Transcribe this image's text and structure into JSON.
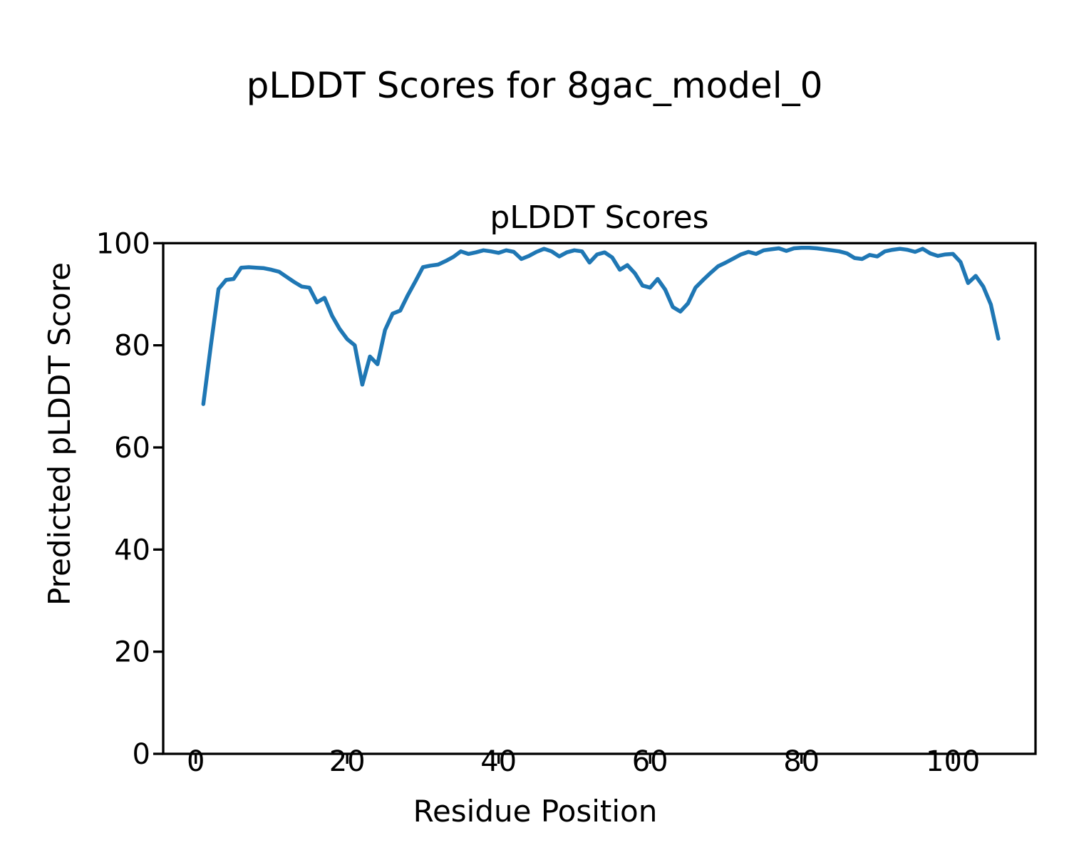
{
  "figure": {
    "suptitle": "pLDDT Scores for 8gac_model_0",
    "background": "#ffffff",
    "text_color": "#000000"
  },
  "chart_data": {
    "type": "line",
    "title": "pLDDT Scores",
    "xlabel": "Residue Position",
    "ylabel": "Predicted pLDDT Score",
    "xticks": [
      0,
      20,
      40,
      60,
      80,
      100
    ],
    "yticks": [
      0,
      20,
      40,
      60,
      80,
      100
    ],
    "xlim": [
      -4.3,
      110.9
    ],
    "ylim": [
      0,
      100
    ],
    "grid": false,
    "legend": "none",
    "series": [
      {
        "name": "pLDDT",
        "color": "#1f77b4",
        "x": [
          1,
          2,
          3,
          4,
          5,
          6,
          7,
          8,
          9,
          10,
          11,
          12,
          13,
          14,
          15,
          16,
          17,
          18,
          19,
          20,
          21,
          22,
          23,
          24,
          25,
          26,
          27,
          28,
          29,
          30,
          31,
          32,
          33,
          34,
          35,
          36,
          37,
          38,
          39,
          40,
          41,
          42,
          43,
          44,
          45,
          46,
          47,
          48,
          49,
          50,
          51,
          52,
          53,
          54,
          55,
          56,
          57,
          58,
          59,
          60,
          61,
          62,
          63,
          64,
          65,
          66,
          67,
          68,
          69,
          70,
          71,
          72,
          73,
          74,
          75,
          76,
          77,
          78,
          79,
          80,
          81,
          82,
          83,
          84,
          85,
          86,
          87,
          88,
          89,
          90,
          91,
          92,
          93,
          94,
          95,
          96,
          97,
          98,
          99,
          100,
          101,
          102,
          103,
          104,
          105,
          106
        ],
        "y": [
          68.5,
          80,
          91,
          92.8,
          93,
          95.2,
          95.3,
          95.2,
          95.1,
          94.8,
          94.4,
          93.4,
          92.4,
          91.5,
          91.3,
          88.4,
          89.3,
          85.8,
          83.2,
          81.2,
          80,
          72.3,
          77.8,
          76.3,
          83,
          86.2,
          86.8,
          89.8,
          92.5,
          95.3,
          95.6,
          95.8,
          96.5,
          97.3,
          98.4,
          97.9,
          98.2,
          98.6,
          98.4,
          98.1,
          98.6,
          98.3,
          96.9,
          97.5,
          98.3,
          98.9,
          98.4,
          97.4,
          98.2,
          98.6,
          98.4,
          96.2,
          97.8,
          98.2,
          97.2,
          94.8,
          95.7,
          94.1,
          91.7,
          91.3,
          93,
          90.9,
          87.5,
          86.6,
          88.2,
          91.3,
          92.8,
          94.2,
          95.5,
          96.2,
          97,
          97.8,
          98.3,
          97.9,
          98.6,
          98.8,
          99,
          98.5,
          99,
          99.1,
          99.1,
          99,
          98.8,
          98.6,
          98.4,
          98,
          97.1,
          96.9,
          97.7,
          97.4,
          98.4,
          98.7,
          98.9,
          98.7,
          98.3,
          98.9,
          98,
          97.5,
          97.8,
          97.9,
          96.3,
          92.2,
          93.6,
          91.5,
          88,
          81.3
        ]
      }
    ]
  }
}
